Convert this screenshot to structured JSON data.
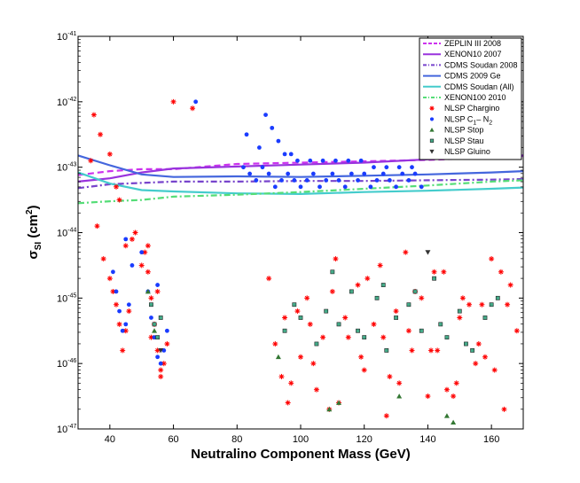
{
  "chart_data": {
    "type": "scatter",
    "title": "",
    "xlabel": "Neutralino Component Mass (GeV)",
    "ylabel_main": "σ",
    "ylabel_sub": "SI",
    "ylabel_unit_open": "(cm",
    "ylabel_unit_sup": "2",
    "ylabel_unit_close": ")",
    "xlim": [
      30,
      170
    ],
    "ylim_log10": [
      -47,
      -41
    ],
    "x_ticks": [
      40,
      60,
      80,
      100,
      120,
      140,
      160
    ],
    "y_tick_labels": [
      {
        "exp": -47,
        "base": "10",
        "sup": "-47"
      },
      {
        "exp": -46,
        "base": "10",
        "sup": "-46"
      },
      {
        "exp": -45,
        "base": "10",
        "sup": "-45"
      },
      {
        "exp": -44,
        "base": "10",
        "sup": "-44"
      },
      {
        "exp": -43,
        "base": "10",
        "sup": "-43"
      },
      {
        "exp": -42,
        "base": "10",
        "sup": "-42"
      },
      {
        "exp": -41,
        "base": "10",
        "sup": "-41"
      }
    ],
    "legend_position": "top-right",
    "series": [
      {
        "name": "ZEPLIN III 2008",
        "kind": "line",
        "color": "#cc33ee",
        "dash": "dash",
        "x": [
          30,
          40,
          50,
          60,
          80,
          100,
          120,
          140,
          160,
          170
        ],
        "log10_y": [
          -43.12,
          -43.06,
          -43.03,
          -43.03,
          -42.95,
          -42.93,
          -42.91,
          -42.89,
          -42.85,
          -42.83
        ]
      },
      {
        "name": "XENON10 2007",
        "kind": "line",
        "color": "#9933dd",
        "dash": "solid",
        "x": [
          30,
          40,
          50,
          60,
          80,
          100,
          120,
          140,
          160,
          170
        ],
        "log10_y": [
          -43.22,
          -43.17,
          -43.08,
          -43.02,
          -42.99,
          -42.96,
          -42.93,
          -42.88,
          -42.84,
          -42.82
        ]
      },
      {
        "name": "CDMS Soudan 2008",
        "kind": "line",
        "color": "#7744cc",
        "dash": "dashdot",
        "x": [
          30,
          40,
          50,
          60,
          80,
          100,
          120,
          140,
          160,
          170
        ],
        "log10_y": [
          -43.32,
          -43.26,
          -43.24,
          -43.22,
          -43.22,
          -43.21,
          -43.21,
          -43.2,
          -43.19,
          -43.18
        ]
      },
      {
        "name": "CDMS 2009 Ge",
        "kind": "line",
        "color": "#4466dd",
        "dash": "solid",
        "x": [
          30,
          40,
          50,
          60,
          80,
          100,
          120,
          140,
          160,
          170
        ],
        "log10_y": [
          -42.82,
          -42.97,
          -43.11,
          -43.15,
          -43.14,
          -43.15,
          -43.13,
          -43.11,
          -43.08,
          -43.06
        ]
      },
      {
        "name": "CDMS Soudan (All)",
        "kind": "line",
        "color": "#44cccc",
        "dash": "solid",
        "x": [
          30,
          40,
          50,
          60,
          80,
          100,
          120,
          140,
          160,
          170
        ],
        "log10_y": [
          -43.08,
          -43.25,
          -43.35,
          -43.37,
          -43.4,
          -43.41,
          -43.38,
          -43.36,
          -43.33,
          -43.31
        ]
      },
      {
        "name": "XENON100 2010",
        "kind": "line",
        "color": "#55dd77",
        "dash": "dashdot",
        "x": [
          30,
          40,
          50,
          60,
          80,
          100,
          120,
          140,
          160,
          170
        ],
        "log10_y": [
          -43.55,
          -43.52,
          -43.5,
          -43.45,
          -43.42,
          -43.38,
          -43.33,
          -43.28,
          -43.22,
          -43.2
        ]
      },
      {
        "name": "NLSP Chargino",
        "kind": "scatter",
        "marker": "star",
        "color": "#ff0000",
        "x": [
          36,
          38,
          40,
          41,
          42,
          43,
          44,
          45,
          46,
          50,
          51,
          52,
          53,
          54,
          55,
          56,
          57,
          58,
          35,
          37,
          40,
          43,
          47,
          52,
          55,
          42,
          45,
          53,
          56,
          34,
          48,
          60,
          66,
          90,
          95,
          100,
          105,
          110,
          115,
          120,
          125,
          130,
          135,
          140,
          145,
          150,
          155,
          160,
          165,
          92,
          97,
          102,
          107,
          112,
          118,
          123,
          128,
          133,
          138,
          143,
          148,
          153,
          158,
          163,
          168,
          94,
          99,
          104,
          109,
          114,
          121,
          126,
          131,
          136,
          141,
          146,
          151,
          156,
          161,
          166,
          96,
          103,
          111,
          119,
          127,
          134,
          142,
          149,
          157,
          164
        ],
        "log10_y": [
          -43.9,
          -44.4,
          -44.7,
          -44.9,
          -45.1,
          -45.4,
          -45.8,
          -45.5,
          -45.2,
          -44.5,
          -44.3,
          -44.6,
          -45.0,
          -45.4,
          -45.8,
          -46.1,
          -46.0,
          -45.7,
          -42.2,
          -42.5,
          -42.8,
          -43.5,
          -44.1,
          -44.2,
          -44.9,
          -43.3,
          -44.2,
          -45.6,
          -46.2,
          -42.9,
          -44.0,
          -42.0,
          -42.1,
          -44.7,
          -45.3,
          -45.9,
          -46.4,
          -44.9,
          -45.6,
          -46.1,
          -44.5,
          -45.2,
          -45.8,
          -46.5,
          -44.6,
          -45.3,
          -46.0,
          -44.4,
          -45.1,
          -45.7,
          -46.3,
          -45.0,
          -45.6,
          -46.6,
          -44.8,
          -45.4,
          -46.2,
          -44.3,
          -45.0,
          -45.8,
          -46.5,
          -45.1,
          -45.9,
          -44.6,
          -45.5,
          -46.2,
          -45.2,
          -46.0,
          -46.7,
          -45.3,
          -44.7,
          -45.6,
          -46.3,
          -44.9,
          -45.8,
          -46.4,
          -45.0,
          -45.7,
          -46.1,
          -44.8,
          -46.6,
          -45.4,
          -44.4,
          -45.9,
          -46.8,
          -45.5,
          -44.6,
          -46.3,
          -45.1,
          -46.7
        ]
      },
      {
        "name": "NLSP C1 – N2",
        "label_main": "NLSP C",
        "label_sub1": "1",
        "label_mid": "– N",
        "label_sub2": "2",
        "kind": "scatter",
        "marker": "circle",
        "color": "#1a3cff",
        "x": [
          41,
          42,
          43,
          44,
          45,
          46,
          52,
          53,
          54,
          55,
          56,
          57,
          45,
          47,
          50,
          55,
          58,
          67,
          82,
          84,
          86,
          88,
          90,
          92,
          94,
          96,
          98,
          100,
          102,
          104,
          106,
          108,
          110,
          112,
          114,
          116,
          118,
          120,
          122,
          124,
          126,
          128,
          130,
          132,
          134,
          136,
          138,
          83,
          87,
          91,
          95,
          99,
          103,
          107,
          111,
          115,
          119,
          123,
          127,
          131,
          135,
          89,
          93,
          97
        ],
        "log10_y": [
          -44.6,
          -44.9,
          -45.2,
          -45.5,
          -45.4,
          -45.1,
          -44.9,
          -45.3,
          -45.6,
          -45.9,
          -46.0,
          -45.8,
          -44.1,
          -44.5,
          -44.3,
          -44.8,
          -45.5,
          -42.0,
          -43.0,
          -43.1,
          -43.2,
          -43.0,
          -43.1,
          -43.3,
          -43.2,
          -43.1,
          -43.2,
          -43.3,
          -43.2,
          -43.1,
          -43.3,
          -43.2,
          -43.1,
          -43.2,
          -43.3,
          -43.1,
          -43.2,
          -43.1,
          -43.3,
          -43.2,
          -43.1,
          -43.2,
          -43.3,
          -43.1,
          -43.2,
          -43.1,
          -43.3,
          -42.5,
          -42.7,
          -42.4,
          -42.8,
          -42.9,
          -42.9,
          -42.9,
          -42.9,
          -42.9,
          -42.9,
          -43.0,
          -43.0,
          -43.0,
          -43.0,
          -42.2,
          -42.6,
          -42.8
        ]
      },
      {
        "name": "NLSP Stop",
        "kind": "scatter",
        "marker": "triangle-up",
        "color": "#337733",
        "x": [
          93,
          109,
          112,
          131,
          148,
          146,
          52,
          54
        ],
        "log10_y": [
          -45.9,
          -46.7,
          -46.6,
          -46.5,
          -46.9,
          -46.8,
          -44.9,
          -45.5
        ]
      },
      {
        "name": "NLSP Stau",
        "kind": "scatter",
        "marker": "square",
        "color": "#44aa88",
        "x": [
          53,
          54,
          55,
          56,
          95,
          100,
          105,
          108,
          112,
          116,
          120,
          124,
          127,
          130,
          134,
          138,
          142,
          146,
          150,
          154,
          158,
          162,
          98,
          110,
          118,
          126,
          136,
          144,
          152,
          160
        ],
        "log10_y": [
          -45.1,
          -45.4,
          -45.6,
          -45.3,
          -45.5,
          -45.3,
          -45.7,
          -45.2,
          -45.4,
          -44.9,
          -45.6,
          -45.0,
          -45.8,
          -45.3,
          -45.1,
          -45.5,
          -44.7,
          -45.6,
          -45.2,
          -45.8,
          -45.3,
          -45.0,
          -45.1,
          -44.6,
          -45.5,
          -44.8,
          -44.9,
          -45.4,
          -45.7,
          -45.1
        ]
      },
      {
        "name": "NLSP Gluino",
        "kind": "scatter",
        "marker": "triangle-down",
        "color": "#333333",
        "x": [
          56,
          140
        ],
        "log10_y": [
          -45.8,
          -44.3
        ]
      }
    ]
  }
}
